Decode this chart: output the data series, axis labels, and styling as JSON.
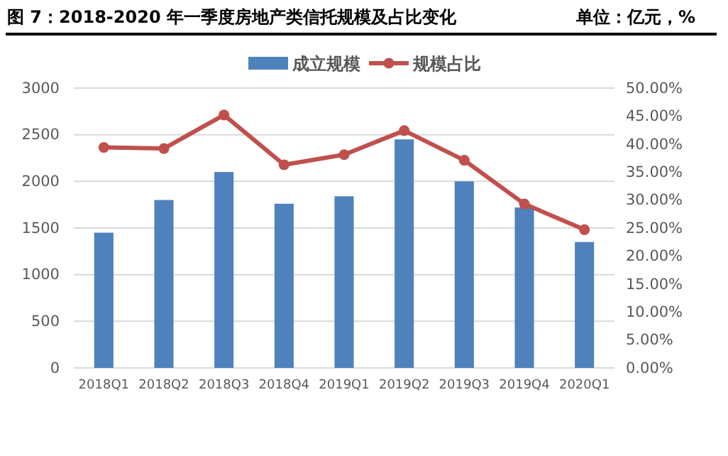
{
  "chart_data": {
    "type": "bar",
    "title": "图 7：2018-2020 年一季度房地产类信托规模及占比变化",
    "subtitle": "单位：亿元，%",
    "categories": [
      "2018Q1",
      "2018Q2",
      "2018Q3",
      "2018Q4",
      "2019Q1",
      "2019Q2",
      "2019Q3",
      "2019Q4",
      "2020Q1"
    ],
    "series": [
      {
        "name": "成立规模",
        "color": "#4f81bd",
        "values": [
          1450,
          1800,
          2100,
          1760,
          1840,
          2450,
          2000,
          1720,
          1350
        ]
      },
      {
        "name": "规模占比",
        "type": "line",
        "axis": "y2",
        "color": "#c0504d",
        "marker": "circle",
        "values": [
          39.4,
          39.2,
          45.2,
          36.3,
          38.1,
          42.4,
          37.1,
          29.3,
          24.7
        ]
      }
    ],
    "ylim": [
      0,
      3000
    ],
    "yticks": [
      0,
      500,
      1000,
      1500,
      2000,
      2500,
      3000
    ],
    "y2lim": [
      0,
      50
    ],
    "y2ticks": [
      {
        "value": 0,
        "label": "0.00%"
      },
      {
        "value": 5,
        "label": "5.00%"
      },
      {
        "value": 10,
        "label": "10.00%"
      },
      {
        "value": 15,
        "label": "15.00%"
      },
      {
        "value": 20,
        "label": "20.00%"
      },
      {
        "value": 25,
        "label": "25.00%"
      },
      {
        "value": 30,
        "label": "30.00%"
      },
      {
        "value": 35,
        "label": "35.00%"
      },
      {
        "value": 40,
        "label": "40.00%"
      },
      {
        "value": 45,
        "label": "45.00%"
      },
      {
        "value": 50,
        "label": "50.00%"
      }
    ],
    "grid": "y",
    "legend": "top"
  }
}
